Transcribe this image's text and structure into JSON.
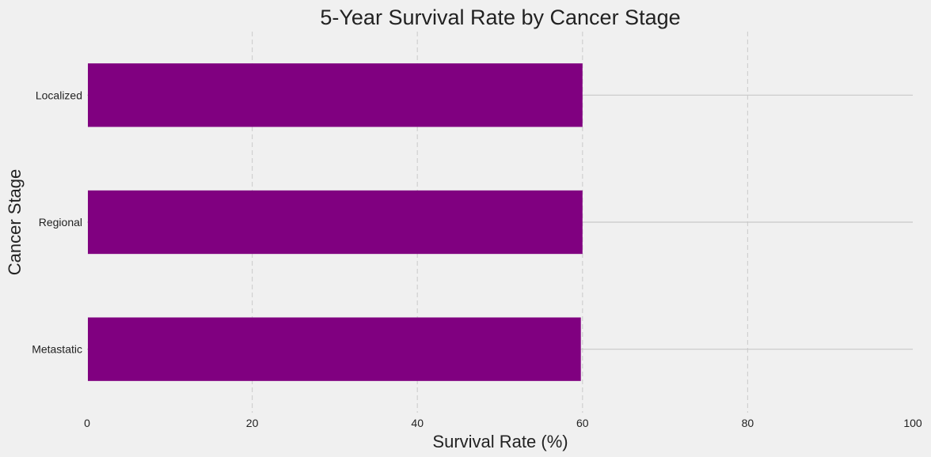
{
  "chart_data": {
    "type": "bar",
    "orientation": "horizontal",
    "title": "5-Year Survival Rate by Cancer Stage",
    "xlabel": "Survival Rate (%)",
    "ylabel": "Cancer Stage",
    "categories": [
      "Localized",
      "Regional",
      "Metastatic"
    ],
    "values": [
      60,
      60,
      59.8
    ],
    "xlim": [
      0,
      100
    ],
    "xticks": [
      0,
      20,
      40,
      60,
      80,
      100
    ],
    "bar_color": "#800080",
    "background_color": "#f0f0f0",
    "grid": true,
    "legend": "none"
  }
}
